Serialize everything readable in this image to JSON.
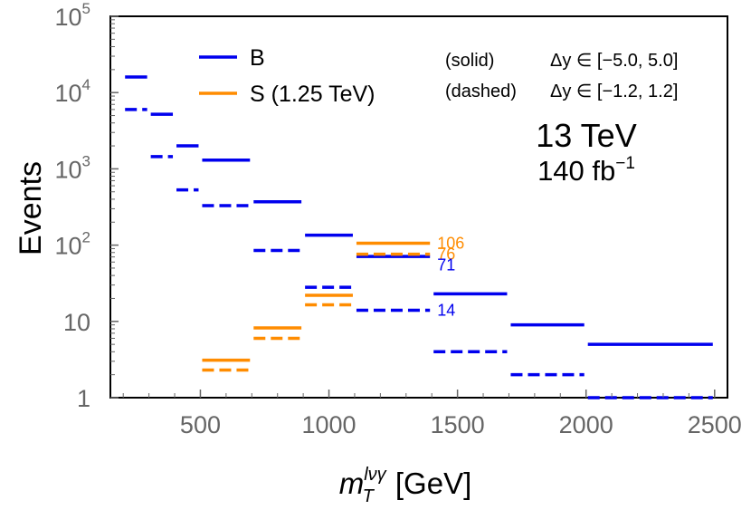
{
  "chart_data": {
    "type": "line",
    "ylabel": "Events",
    "xlabel": {
      "main": "m",
      "sup": "lνγ",
      "sub": "T",
      "unit": "[GeV]"
    },
    "xlim": [
      150,
      2550
    ],
    "ylim": [
      1,
      100000
    ],
    "yscale": "log",
    "x_ticks": [
      "500",
      "1000",
      "1500",
      "2000",
      "2500"
    ],
    "x_tick_values": [
      500,
      1000,
      1500,
      2000,
      2500
    ],
    "y_ticks": [
      {
        "value": 1,
        "base": "1",
        "exp": ""
      },
      {
        "value": 10,
        "base": "10",
        "exp": ""
      },
      {
        "value": 100,
        "base": "10",
        "exp": "2"
      },
      {
        "value": 1000,
        "base": "10",
        "exp": "3"
      },
      {
        "value": 10000,
        "base": "10",
        "exp": "4"
      },
      {
        "value": 100000,
        "base": "10",
        "exp": "5"
      }
    ],
    "legend": [
      {
        "label": "B",
        "color": "#0000ee"
      },
      {
        "label": "S (1.25 TeV)",
        "color": "#ff8c00"
      }
    ],
    "notes": {
      "solid": "(solid)",
      "solid_range": "Δy ∈ [−5.0, 5.0]",
      "dashed": "(dashed)",
      "dashed_range": "Δy ∈ [−1.2, 1.2]"
    },
    "energy": "13 TeV",
    "lumi": "140 fb",
    "lumi_exp": "−1",
    "series": [
      {
        "name": "B",
        "style": "solid",
        "color": "#0000ee",
        "bins": [
          {
            "x0": 200,
            "x1": 300,
            "y": 16000
          },
          {
            "x0": 300,
            "x1": 400,
            "y": 5200
          },
          {
            "x0": 400,
            "x1": 500,
            "y": 2000
          },
          {
            "x0": 500,
            "x1": 700,
            "y": 1300
          },
          {
            "x0": 700,
            "x1": 900,
            "y": 370
          },
          {
            "x0": 900,
            "x1": 1100,
            "y": 135
          },
          {
            "x0": 1100,
            "x1": 1400,
            "y": 71
          },
          {
            "x0": 1400,
            "x1": 1700,
            "y": 23
          },
          {
            "x0": 1700,
            "x1": 2000,
            "y": 9
          },
          {
            "x0": 2000,
            "x1": 2500,
            "y": 5
          }
        ]
      },
      {
        "name": "B",
        "style": "dashed",
        "color": "#0000ee",
        "bins": [
          {
            "x0": 200,
            "x1": 300,
            "y": 6000
          },
          {
            "x0": 300,
            "x1": 400,
            "y": 1450
          },
          {
            "x0": 400,
            "x1": 500,
            "y": 530
          },
          {
            "x0": 500,
            "x1": 700,
            "y": 330
          },
          {
            "x0": 700,
            "x1": 900,
            "y": 85
          },
          {
            "x0": 900,
            "x1": 1100,
            "y": 28
          },
          {
            "x0": 1100,
            "x1": 1400,
            "y": 14
          },
          {
            "x0": 1400,
            "x1": 1700,
            "y": 4
          },
          {
            "x0": 1700,
            "x1": 2000,
            "y": 2
          },
          {
            "x0": 2000,
            "x1": 2500,
            "y": 1
          }
        ]
      },
      {
        "name": "S (1.25 TeV)",
        "style": "solid",
        "color": "#ff8c00",
        "bins": [
          {
            "x0": 500,
            "x1": 700,
            "y": 3.1
          },
          {
            "x0": 700,
            "x1": 900,
            "y": 8.2
          },
          {
            "x0": 900,
            "x1": 1100,
            "y": 22
          },
          {
            "x0": 1100,
            "x1": 1400,
            "y": 106
          }
        ]
      },
      {
        "name": "S (1.25 TeV)",
        "style": "dashed",
        "color": "#ff8c00",
        "bins": [
          {
            "x0": 500,
            "x1": 700,
            "y": 2.3
          },
          {
            "x0": 700,
            "x1": 900,
            "y": 6
          },
          {
            "x0": 900,
            "x1": 1100,
            "y": 16.5
          },
          {
            "x0": 1100,
            "x1": 1400,
            "y": 76
          }
        ]
      }
    ],
    "annotations": [
      {
        "text": "106",
        "x": 1400,
        "y": 106,
        "color": "#ff8c00"
      },
      {
        "text": "76",
        "x": 1400,
        "y": 76,
        "color": "#ff8c00"
      },
      {
        "text": "71",
        "x": 1400,
        "y": 55,
        "color": "#0000ee"
      },
      {
        "text": "14",
        "x": 1400,
        "y": 14,
        "color": "#0000ee"
      }
    ]
  }
}
